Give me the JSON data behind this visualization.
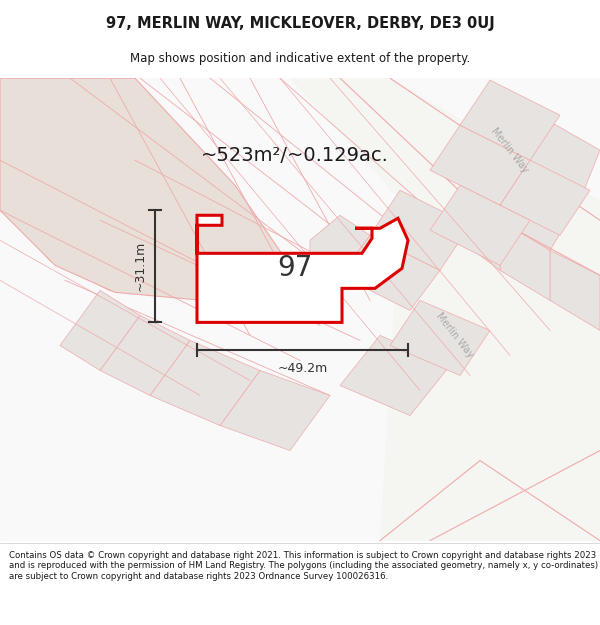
{
  "title_line1": "97, MERLIN WAY, MICKLEOVER, DERBY, DE3 0UJ",
  "title_line2": "Map shows position and indicative extent of the property.",
  "area_text": "~523m²/~0.129ac.",
  "label_97": "97",
  "width_label": "~49.2m",
  "height_label": "~31.1m",
  "footer_text": "Contains OS data © Crown copyright and database right 2021. This information is subject to Crown copyright and database rights 2023 and is reproduced with the permission of HM Land Registry. The polygons (including the associated geometry, namely x, y co-ordinates) are subject to Crown copyright and database rights 2023 Ordnance Survey 100026316.",
  "bg_color": "#ffffff",
  "map_bg_color": "#f7f7f5",
  "plot_outline_color": "#dd0000",
  "other_plot_fill": "#e6e3e0",
  "road_line_color": "#f0aaaa",
  "road_fill_color": "#f9f9f9",
  "large_bldg_fill": "#e8e0d8",
  "merlin_way_fill": "#f5f5f2",
  "dim_line_color": "#333333",
  "title_color": "#1a1a1a",
  "footer_color": "#1a1a1a",
  "merlin_label_color": "#aaaaaa"
}
